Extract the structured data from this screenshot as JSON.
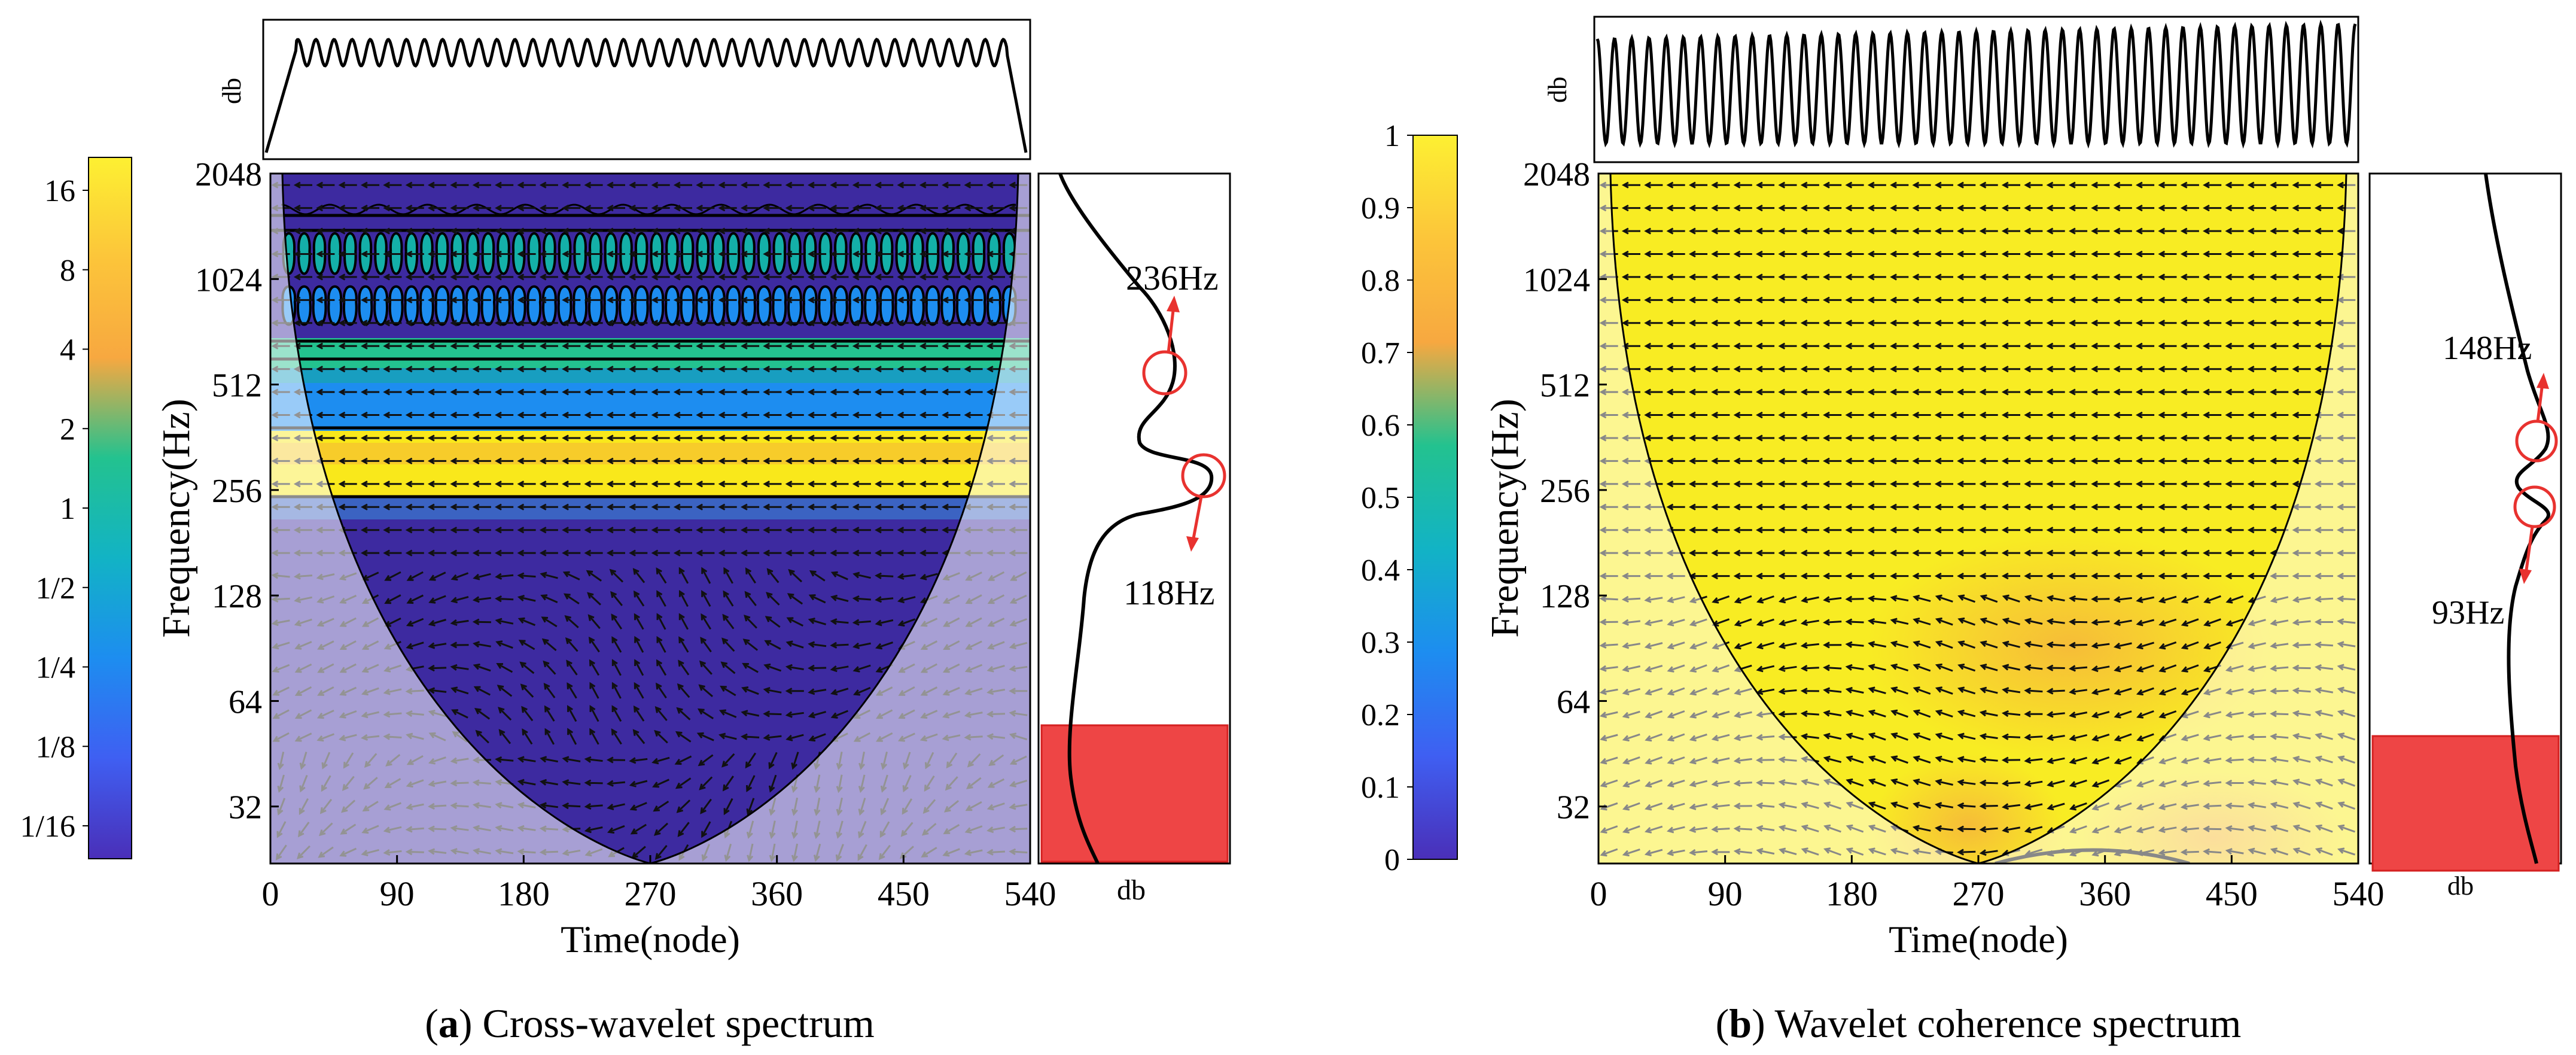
{
  "panels": [
    {
      "id": "a",
      "caption_letter": "a",
      "caption_open": "(",
      "caption_rest": ") Cross-wavelet spectrum",
      "colorbar_ticks": [
        "16",
        "8",
        "4",
        "2",
        "1",
        "1/2",
        "1/4",
        "1/8",
        "1/16"
      ],
      "colorbar_colors": [
        "#fdf032",
        "#fcc53a",
        "#f7a840",
        "#23c28f",
        "#12b3c5",
        "#1d8df0",
        "#3f5ff2",
        "#4a2fb8"
      ],
      "top_ylabel": "db",
      "side_xlabel": "db",
      "annotations": [
        {
          "text": "236Hz"
        },
        {
          "text": "118Hz"
        }
      ],
      "background_color": "#3d2aa0",
      "band_color": "#f9e81b",
      "accent_color": "#e8322f"
    },
    {
      "id": "b",
      "caption_letter": "b",
      "caption_open": "(",
      "caption_rest": ") Wavelet coherence spectrum",
      "colorbar_ticks": [
        "1",
        "0.9",
        "0.8",
        "0.7",
        "0.6",
        "0.5",
        "0.4",
        "0.3",
        "0.2",
        "0.1",
        "0"
      ],
      "colorbar_colors": [
        "#fdf032",
        "#fcc53a",
        "#f7a840",
        "#23c28f",
        "#12b3c5",
        "#1d8df0",
        "#3f5ff2",
        "#4a2fb8"
      ],
      "top_ylabel": "db",
      "side_xlabel": "db",
      "annotations": [
        {
          "text": "148Hz"
        },
        {
          "text": "93Hz"
        }
      ],
      "background_color": "#f8ec23",
      "band_color": "#f6b73a",
      "accent_color": "#e8322f"
    }
  ],
  "chart_data": [
    {
      "type": "heatmap",
      "title": "Cross-wavelet spectrum",
      "xlabel": "Time(node)",
      "ylabel": "Frequency(Hz)",
      "x_ticks": [
        "0",
        "90",
        "180",
        "270",
        "360",
        "450",
        "540"
      ],
      "y_ticks": [
        "32",
        "64",
        "128",
        "256",
        "512",
        "1024",
        "2048"
      ],
      "xlim": [
        0,
        540
      ],
      "ylim": [
        22,
        2048
      ],
      "y_scale": "log2",
      "colorbar": {
        "ticks": [
          "1/16",
          "1/8",
          "1/4",
          "1/2",
          "1",
          "2",
          "4",
          "8",
          "16"
        ],
        "min": 0.0625,
        "max": 16,
        "scale": "log2"
      },
      "high_power_bands_hz": [
        [
          256,
          370
        ],
        [
          520,
          1400
        ]
      ],
      "peaks_hz": [
        236,
        118
      ],
      "cone_of_influence": true,
      "arrows": true
    },
    {
      "type": "heatmap",
      "title": "Wavelet coherence spectrum",
      "xlabel": "Time(node)",
      "ylabel": "Frequency(Hz)",
      "x_ticks": [
        "0",
        "90",
        "180",
        "270",
        "360",
        "450",
        "540"
      ],
      "y_ticks": [
        "32",
        "64",
        "128",
        "256",
        "512",
        "1024",
        "2048"
      ],
      "xlim": [
        0,
        540
      ],
      "ylim": [
        22,
        2048
      ],
      "y_scale": "log2",
      "colorbar": {
        "ticks": [
          "0",
          "0.1",
          "0.2",
          "0.3",
          "0.4",
          "0.5",
          "0.6",
          "0.7",
          "0.8",
          "0.9",
          "1"
        ],
        "min": 0,
        "max": 1
      },
      "peaks_hz": [
        148,
        93
      ],
      "cone_of_influence": true,
      "arrows": true
    }
  ]
}
